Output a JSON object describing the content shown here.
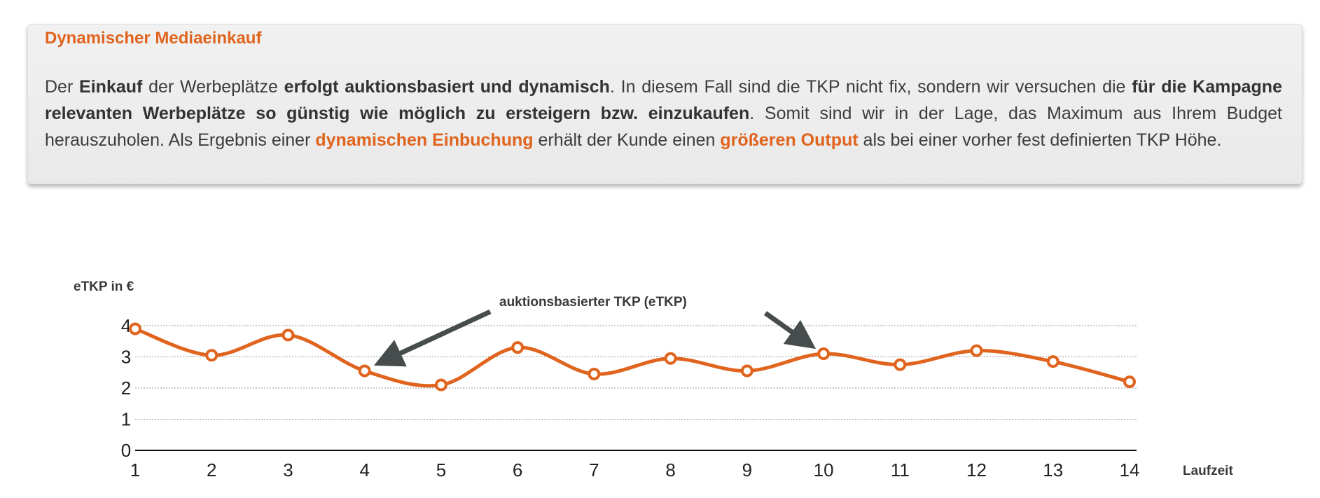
{
  "box": {
    "title": "Dynamischer Mediaeinkauf",
    "paragraph": [
      {
        "t": "Der ",
        "s": "n"
      },
      {
        "t": "Einkauf",
        "s": "b"
      },
      {
        "t": " der Werbeplätze ",
        "s": "n"
      },
      {
        "t": "erfolgt auktionsbasiert und dynamisch",
        "s": "b"
      },
      {
        "t": ". In diesem Fall sind die TKP nicht fix, sondern wir versuchen die ",
        "s": "n"
      },
      {
        "t": "für die Kampagne relevanten Werbeplätze so günstig wie möglich zu ersteigern bzw. einzukaufen",
        "s": "b"
      },
      {
        "t": ". Somit sind wir in der Lage, das Maximum aus Ihrem Budget herauszuholen. Als Ergebnis einer ",
        "s": "n"
      },
      {
        "t": "dynamischen Einbuchung",
        "s": "o"
      },
      {
        "t": " erhält der Kunde einen ",
        "s": "n"
      },
      {
        "t": "größeren Output",
        "s": "o"
      },
      {
        "t": " als bei einer vorher fest definierten TKP Höhe.",
        "s": "n"
      }
    ]
  },
  "colors": {
    "accent": "#e0641e",
    "arrow": "#474c4c"
  },
  "chart_data": {
    "type": "line",
    "ylabel": "eTKP in €",
    "xlabel": "Laufzeit",
    "annotation": "auktionsbasierter TKP (eTKP)",
    "x": [
      1,
      2,
      3,
      4,
      5,
      6,
      7,
      8,
      9,
      10,
      11,
      12,
      13,
      14
    ],
    "values": [
      3.9,
      3.05,
      3.7,
      2.55,
      2.1,
      3.3,
      2.45,
      2.95,
      2.55,
      3.1,
      2.75,
      3.2,
      2.85,
      2.2
    ],
    "yticks": [
      "0",
      "1",
      "2",
      "3",
      "4"
    ],
    "xticks": [
      "1",
      "2",
      "3",
      "4",
      "5",
      "6",
      "7",
      "8",
      "9",
      "10",
      "11",
      "12",
      "13",
      "14"
    ],
    "ylim": [
      0,
      4
    ],
    "grid": "horizontal dotted",
    "smooth": true
  }
}
